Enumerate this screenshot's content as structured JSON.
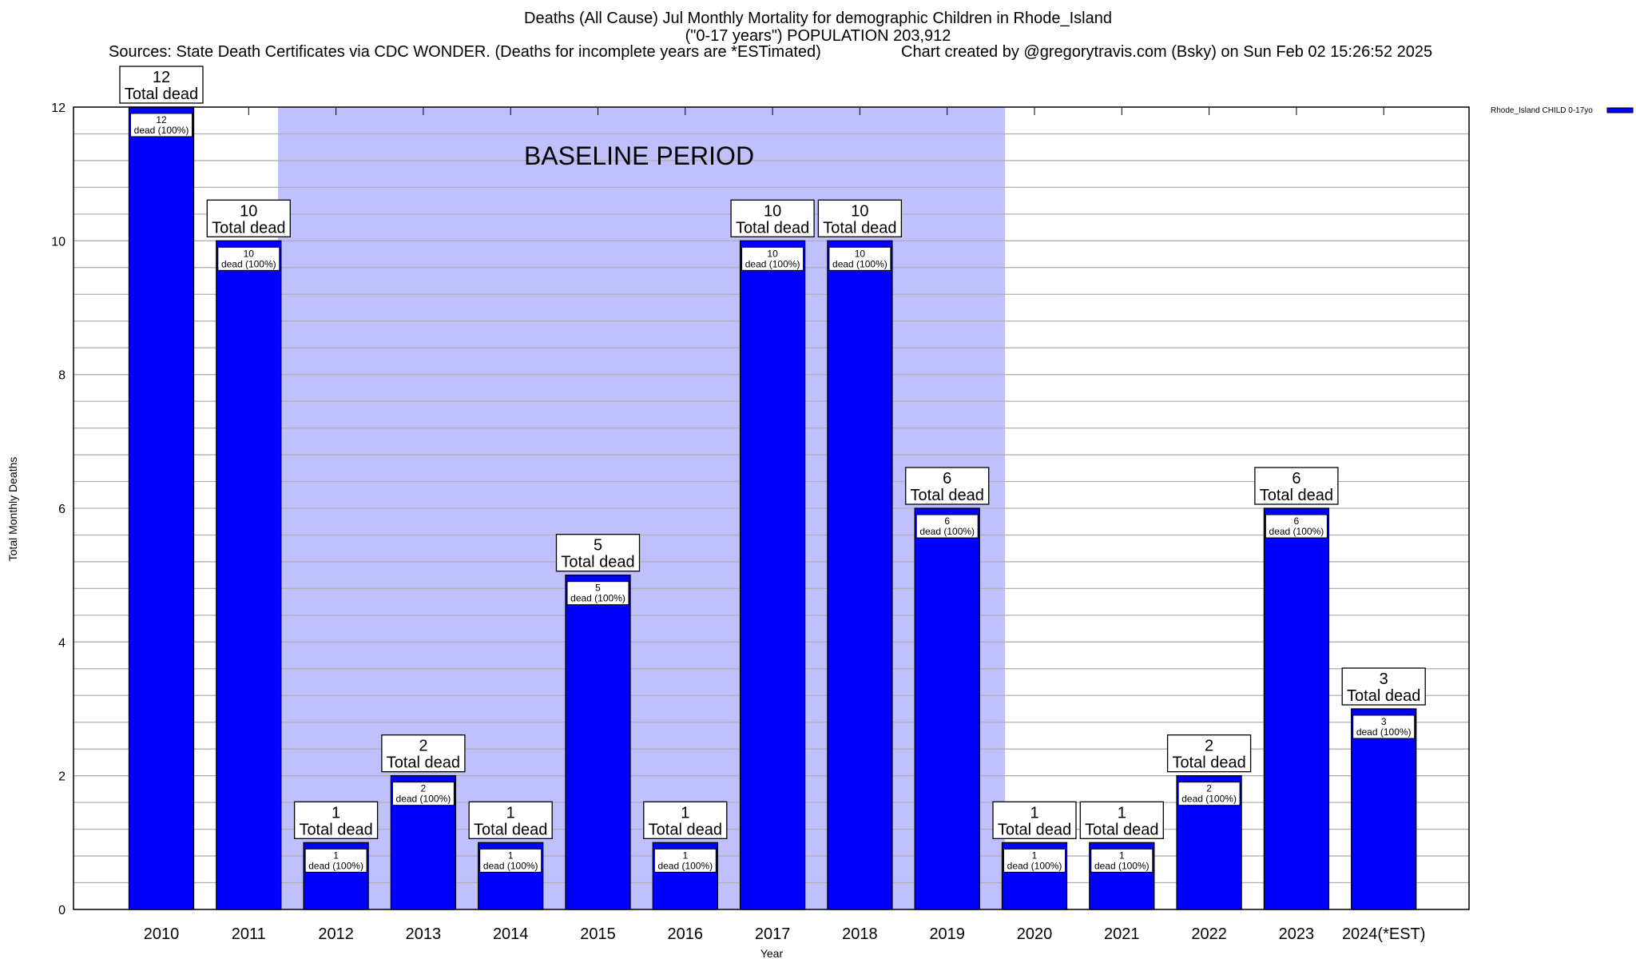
{
  "chart_data": {
    "type": "bar",
    "title": "Deaths (All Cause) Jul Monthly Mortality for demographic Children in Rhode_Island",
    "subtitle": "(\"0-17 years\") POPULATION 203,912",
    "sources": "Sources: State Death Certificates via CDC WONDER. (Deaths for incomplete years are *ESTimated)",
    "credit": "Chart created by @gregorytravis.com (Bsky) on Sun Feb 02 15:26:52 2025",
    "xlabel": "Year",
    "ylabel": "Total Monthly Deaths",
    "ylim": [
      0,
      12
    ],
    "yticks": [
      0,
      2,
      4,
      6,
      8,
      10,
      12
    ],
    "grid": true,
    "legend_position": "top-right",
    "annotation": "BASELINE PERIOD",
    "baseline_range": [
      "2012",
      "2019"
    ],
    "total_label": "Total dead",
    "dead_label_suffix": "dead (100%)",
    "categories": [
      "2010",
      "2011",
      "2012",
      "2013",
      "2014",
      "2015",
      "2016",
      "2017",
      "2018",
      "2019",
      "2020",
      "2021",
      "2022",
      "2023",
      "2024(*EST)"
    ],
    "series": [
      {
        "name": "Rhode_Island CHILD 0-17yo",
        "values": [
          12,
          10,
          1,
          2,
          1,
          5,
          1,
          10,
          10,
          6,
          1,
          1,
          2,
          6,
          3
        ]
      }
    ],
    "colors": {
      "bar": "#0000ff",
      "baseline": "#c0c0ff",
      "grid": "#b0b0b0"
    }
  }
}
